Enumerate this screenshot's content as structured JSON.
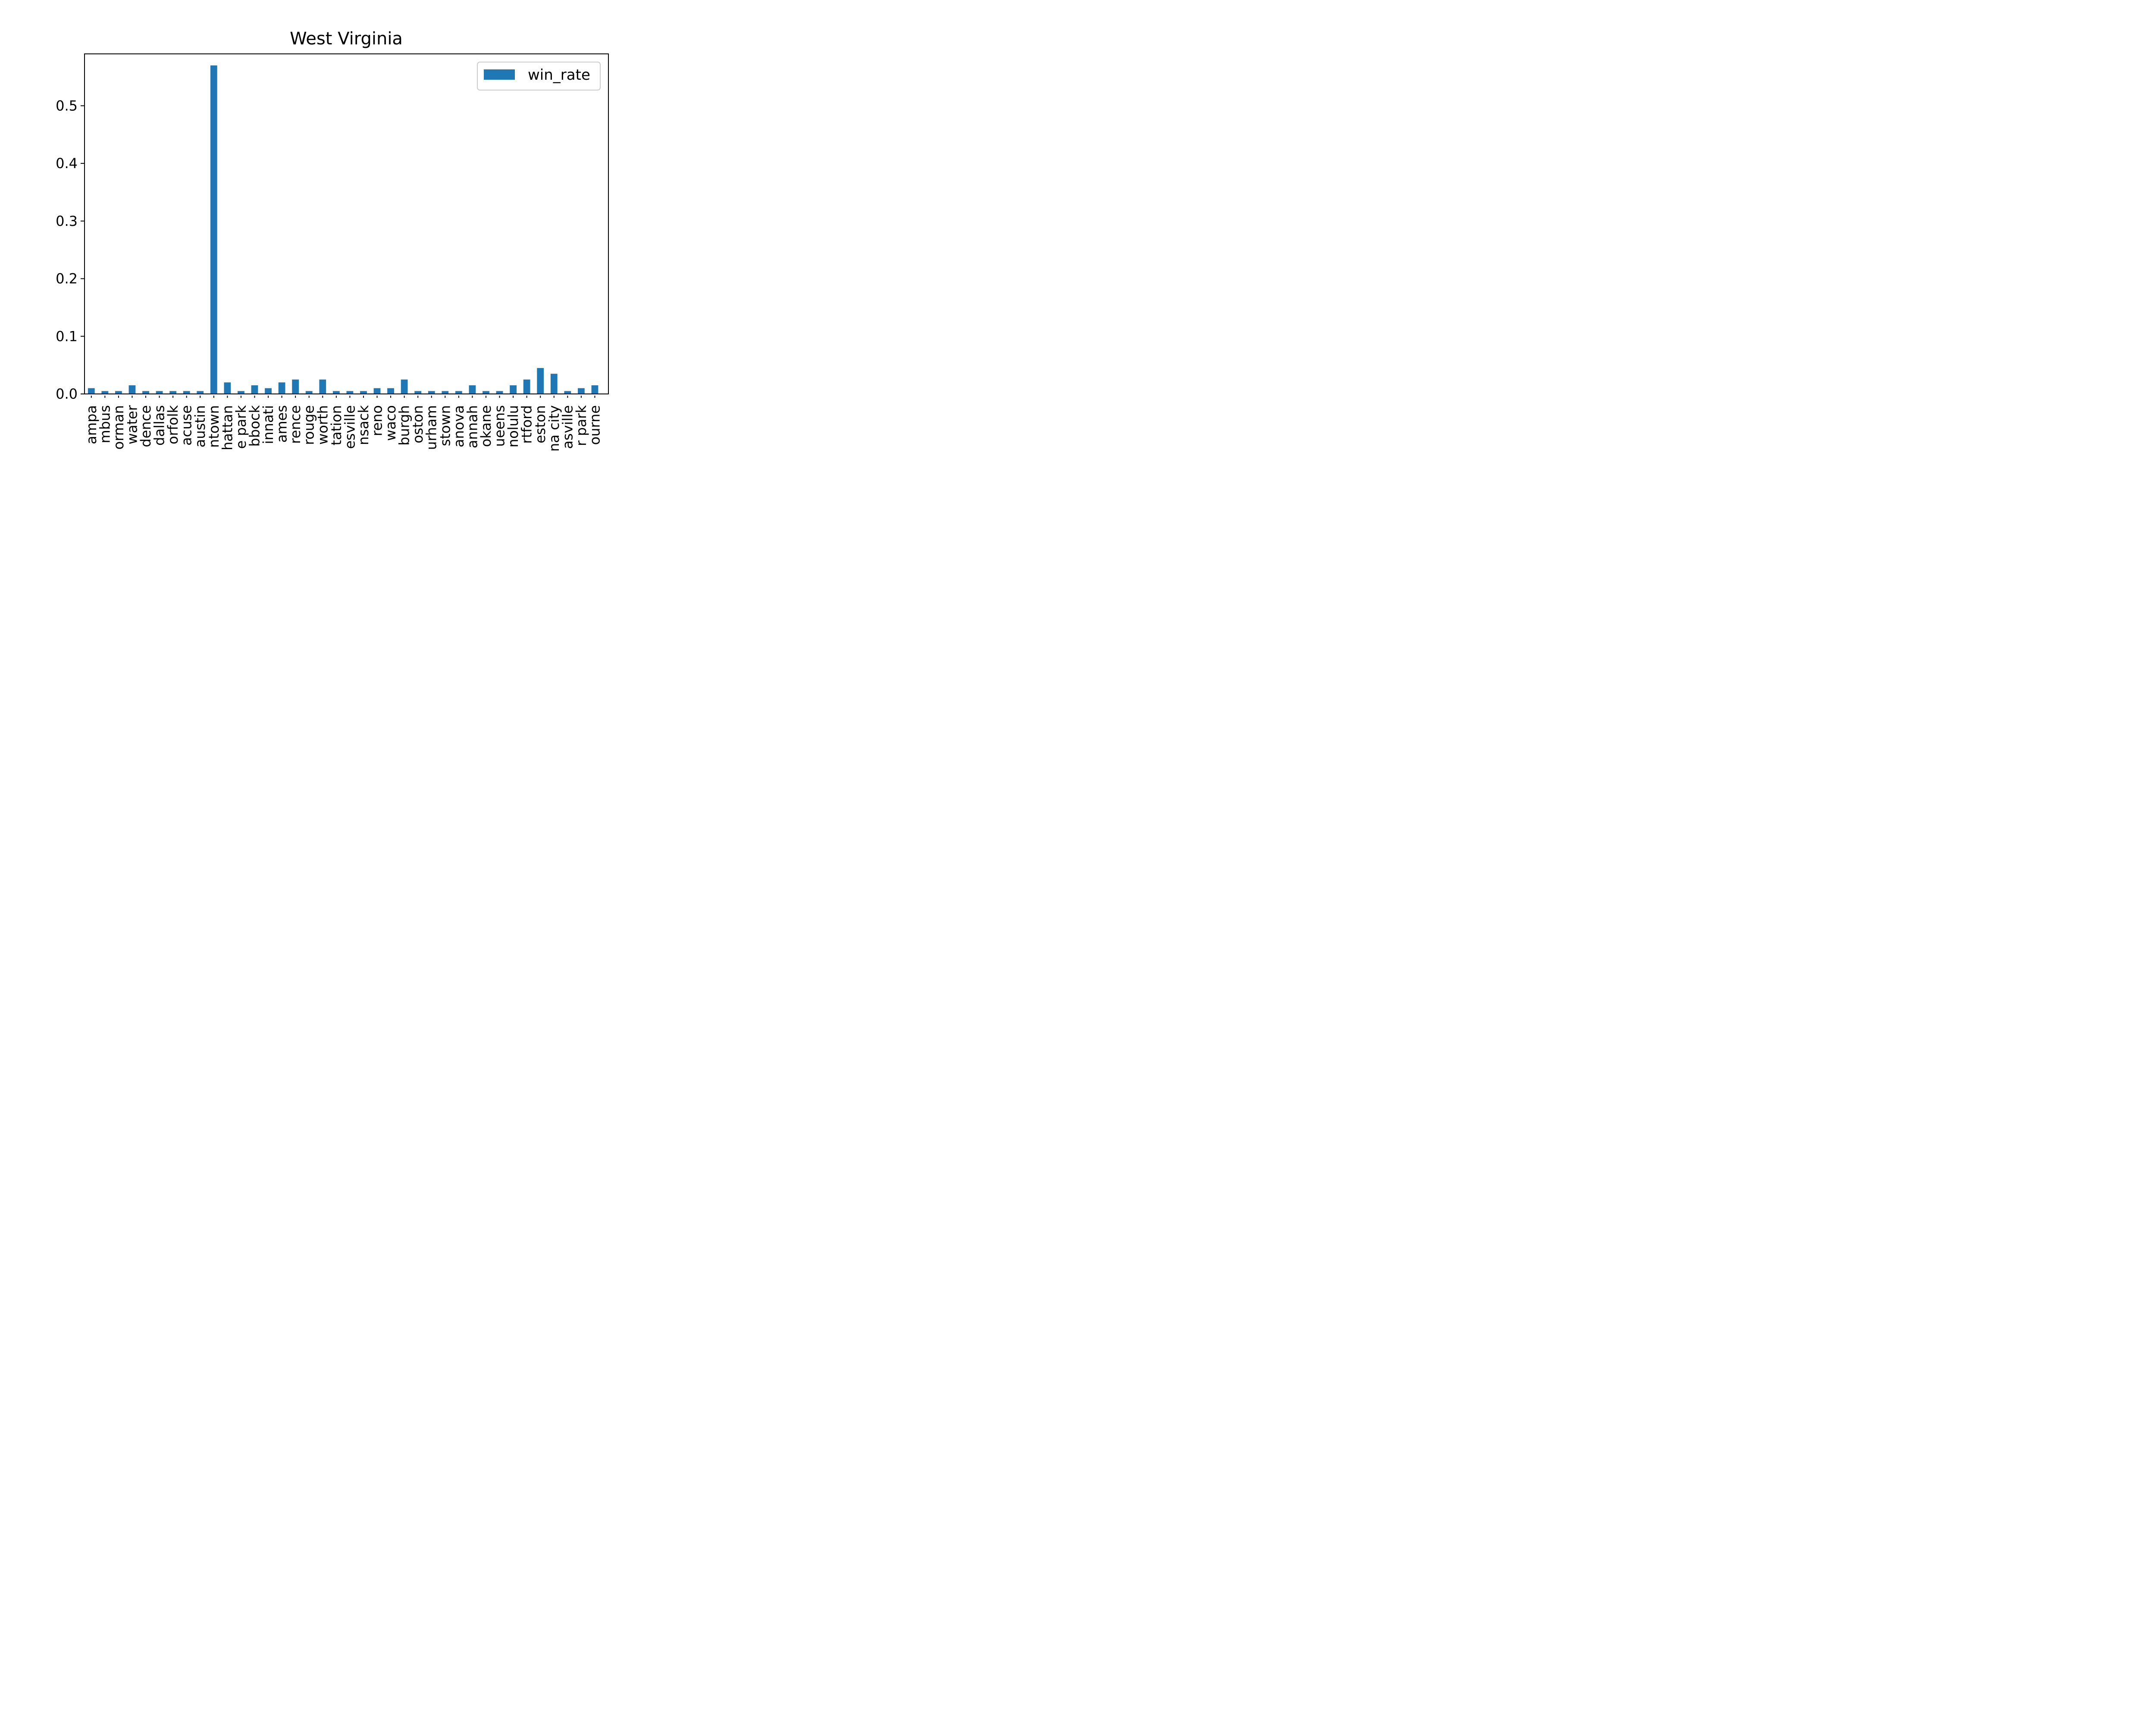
{
  "chart_data": {
    "type": "bar",
    "title": "West Virginia",
    "xlabel": "",
    "ylabel": "",
    "ylim": [
      0,
      0.59
    ],
    "yticks": [
      "0.0",
      "0.1",
      "0.2",
      "0.3",
      "0.4",
      "0.5"
    ],
    "grid": false,
    "legend_position": "top-right",
    "bar_color": "#1f77b4",
    "tick_label_rotation": "vertical",
    "categories": [
      "ampa",
      "mbus",
      "orman",
      "water",
      "dence",
      "dallas",
      "orfolk",
      "acuse",
      "austin",
      "ntown",
      "hattan",
      "e park",
      "bbock",
      "innati",
      "ames",
      "rence",
      "rouge",
      "worth",
      "tation",
      "esville",
      "nsack",
      "reno",
      "waco",
      "burgh",
      "oston",
      "urham",
      "stown",
      "anova",
      "annah",
      "okane",
      "ueens",
      "nolulu",
      "rtford",
      "eston",
      "na city",
      "asville",
      "r park",
      "ourne"
    ],
    "series": [
      {
        "name": "win_rate",
        "color": "#1f77b4",
        "values": [
          0.01,
          0.005,
          0.005,
          0.015,
          0.005,
          0.005,
          0.005,
          0.005,
          0.005,
          0.57,
          0.02,
          0.005,
          0.015,
          0.01,
          0.02,
          0.025,
          0.005,
          0.025,
          0.005,
          0.005,
          0.005,
          0.01,
          0.01,
          0.025,
          0.005,
          0.005,
          0.005,
          0.005,
          0.015,
          0.005,
          0.005,
          0.015,
          0.025,
          0.045,
          0.035,
          0.005,
          0.01,
          0.015
        ]
      }
    ]
  }
}
